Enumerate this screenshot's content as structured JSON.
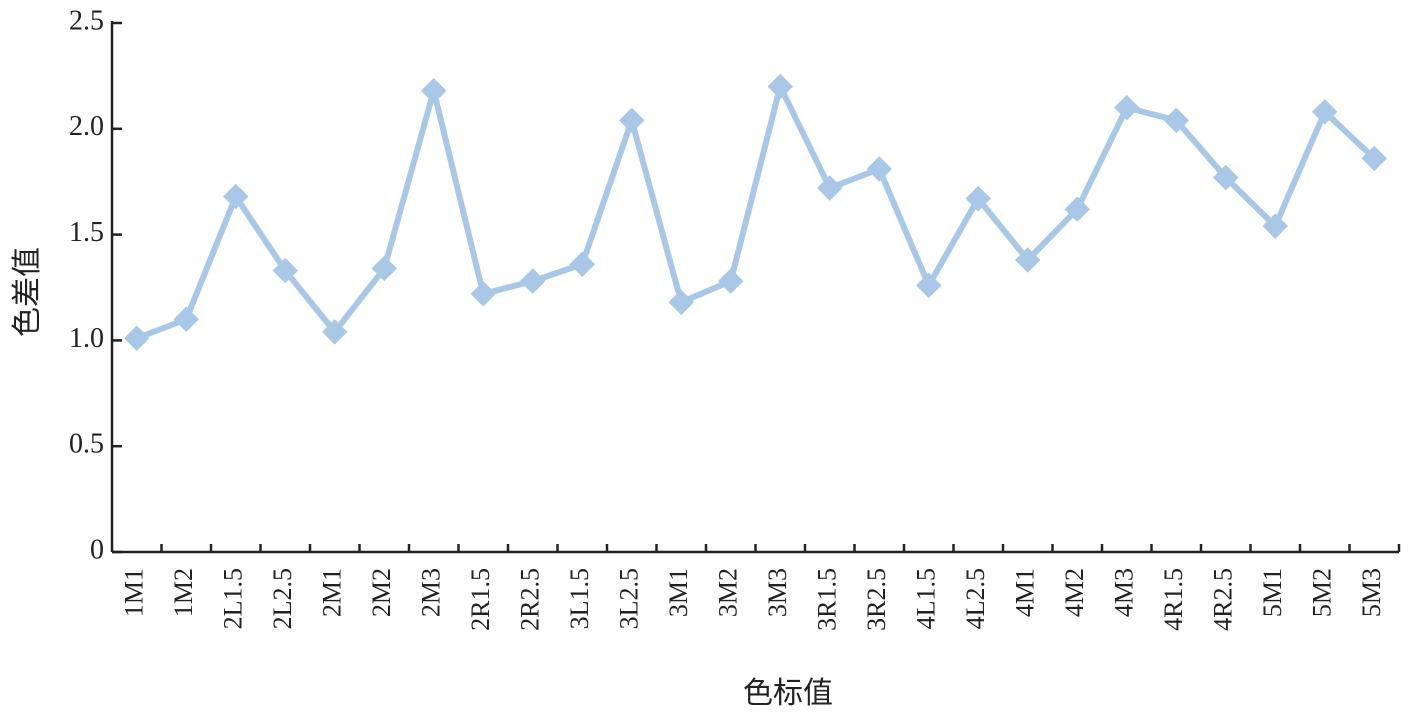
{
  "chart_data": {
    "type": "line",
    "xlabel": "色标值",
    "ylabel": "色差值",
    "categories": [
      "1M1",
      "1M2",
      "2L1.5",
      "2L2.5",
      "2M1",
      "2M2",
      "2M3",
      "2R1.5",
      "2R2.5",
      "3L1.5",
      "3L2.5",
      "3M1",
      "3M2",
      "3M3",
      "3R1.5",
      "3R2.5",
      "4L1.5",
      "4L2.5",
      "4M1",
      "4M2",
      "4M3",
      "4R1.5",
      "4R2.5",
      "5M1",
      "5M2",
      "5M3"
    ],
    "values": [
      1.01,
      1.1,
      1.68,
      1.33,
      1.04,
      1.34,
      2.18,
      1.22,
      1.28,
      1.36,
      2.04,
      1.18,
      1.28,
      2.2,
      1.72,
      1.81,
      1.26,
      1.67,
      1.38,
      1.62,
      2.1,
      2.04,
      1.77,
      1.54,
      2.08,
      1.86
    ],
    "color": "#a9c8e8",
    "ylim": [
      0,
      2.5
    ],
    "yticks": [
      0,
      0.5,
      {
        "value": 1,
        "label": "1.0"
      },
      1.5,
      {
        "value": 2,
        "label": "2.0"
      },
      2.5
    ]
  }
}
